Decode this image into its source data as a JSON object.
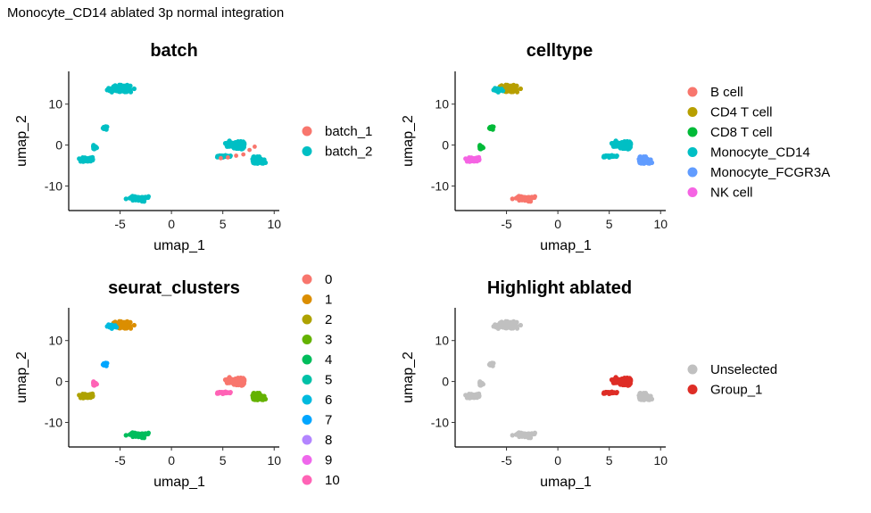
{
  "title": "Monocyte_CD14 ablated 3p normal integration",
  "chart_data": [
    {
      "type": "scatter",
      "title": "batch",
      "xlabel": "umap_1",
      "ylabel": "umap_2",
      "xticks": [
        "-5",
        "0",
        "5",
        "10"
      ],
      "yticks": [
        "10",
        "0",
        "-10"
      ],
      "xlim": [
        -10,
        10.5
      ],
      "ylim": [
        -16,
        18
      ],
      "grid": false,
      "legend_position": "right",
      "series": [
        {
          "name": "batch_1",
          "color": "#F8766D",
          "points": [
            [
              4.8,
              -3.2
            ],
            [
              5.5,
              -3.0
            ],
            [
              6.3,
              -2.6
            ],
            [
              7.0,
              -2.3
            ],
            [
              7.6,
              -1.2
            ],
            [
              8.1,
              -0.4
            ]
          ]
        },
        {
          "name": "batch_2",
          "color": "#00BFC4",
          "points": []
        }
      ]
    },
    {
      "type": "scatter",
      "title": "celltype",
      "xlabel": "umap_1",
      "ylabel": "umap_2",
      "xticks": [
        "-5",
        "0",
        "5",
        "10"
      ],
      "yticks": [
        "10",
        "0",
        "-10"
      ],
      "xlim": [
        -10,
        10.5
      ],
      "ylim": [
        -16,
        18
      ],
      "grid": false,
      "legend_position": "right",
      "series": [
        {
          "name": "B cell",
          "color": "#F8766D"
        },
        {
          "name": "CD4 T cell",
          "color": "#B79F00"
        },
        {
          "name": "CD8 T cell",
          "color": "#00BA38"
        },
        {
          "name": "Monocyte_CD14",
          "color": "#00BFC4"
        },
        {
          "name": "Monocyte_FCGR3A",
          "color": "#619CFF"
        },
        {
          "name": "NK cell",
          "color": "#F564E3"
        }
      ]
    },
    {
      "type": "scatter",
      "title": "seurat_clusters",
      "xlabel": "umap_1",
      "ylabel": "umap_2",
      "xticks": [
        "-5",
        "0",
        "5",
        "10"
      ],
      "yticks": [
        "10",
        "0",
        "-10"
      ],
      "xlim": [
        -10,
        10.5
      ],
      "ylim": [
        -16,
        18
      ],
      "grid": false,
      "legend_position": "right",
      "series": [
        {
          "name": "0",
          "color": "#F8766D"
        },
        {
          "name": "1",
          "color": "#DB8E00"
        },
        {
          "name": "2",
          "color": "#AEA200"
        },
        {
          "name": "3",
          "color": "#64B200"
        },
        {
          "name": "4",
          "color": "#00BD5C"
        },
        {
          "name": "5",
          "color": "#00C1A7"
        },
        {
          "name": "6",
          "color": "#00BADE"
        },
        {
          "name": "7",
          "color": "#00A6FF"
        },
        {
          "name": "8",
          "color": "#B385FF"
        },
        {
          "name": "9",
          "color": "#EF67EB"
        },
        {
          "name": "10",
          "color": "#FF63B6"
        }
      ]
    },
    {
      "type": "scatter",
      "title": "Highlight ablated",
      "xlabel": "umap_1",
      "ylabel": "umap_2",
      "xticks": [
        "-5",
        "0",
        "5",
        "10"
      ],
      "yticks": [
        "10",
        "0",
        "-10"
      ],
      "xlim": [
        -10,
        10.5
      ],
      "ylim": [
        -16,
        18
      ],
      "grid": false,
      "legend_position": "right",
      "series": [
        {
          "name": "Unselected",
          "color": "#C0C0C0"
        },
        {
          "name": "Group_1",
          "color": "#DE2D26"
        }
      ]
    }
  ]
}
